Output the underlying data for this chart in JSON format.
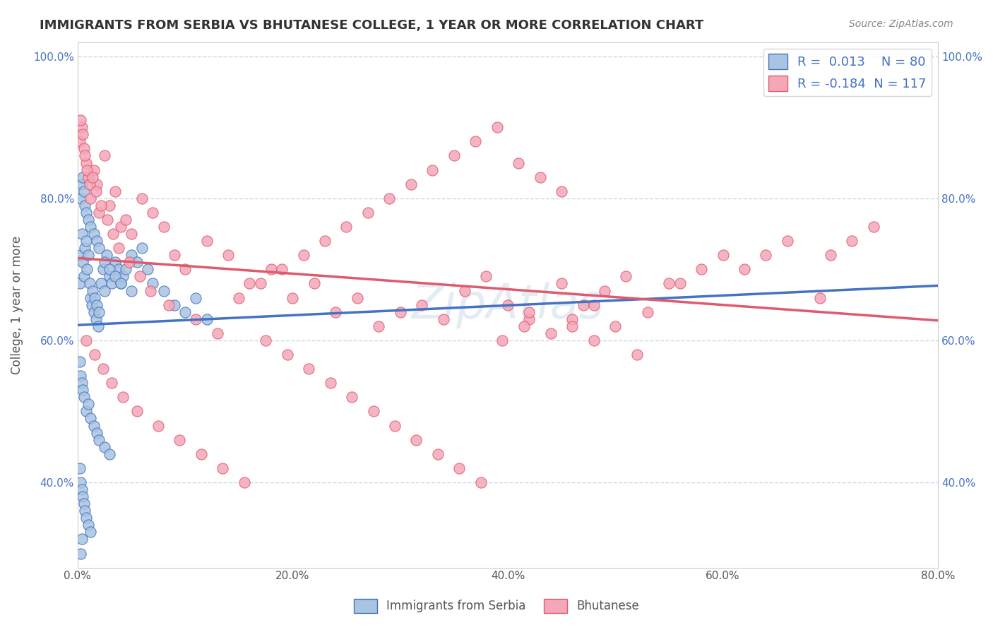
{
  "title": "IMMIGRANTS FROM SERBIA VS BHUTANESE COLLEGE, 1 YEAR OR MORE CORRELATION CHART",
  "source_text": "Source: ZipAtlas.com",
  "ylabel": "College, 1 year or more",
  "xlabel_serbia": "Immigrants from Serbia",
  "xlabel_bhutanese": "Bhutanese",
  "xlim": [
    0.0,
    0.8
  ],
  "ylim": [
    0.28,
    1.02
  ],
  "x_ticks": [
    0.0,
    0.2,
    0.4,
    0.6,
    0.8
  ],
  "x_tick_labels": [
    "0.0%",
    "20.0%",
    "40.0%",
    "60.0%",
    "80.0%"
  ],
  "y_ticks": [
    0.4,
    0.6,
    0.8,
    1.0
  ],
  "y_tick_labels": [
    "40.0%",
    "60.0%",
    "80.0%",
    "100.0%"
  ],
  "serbia_R": 0.013,
  "serbia_N": 80,
  "bhutan_R": -0.184,
  "bhutan_N": 117,
  "serbia_color": "#a8c4e0",
  "bhutan_color": "#f4a7b9",
  "serbia_line_color": "#4472c4",
  "bhutan_line_color": "#e05a6e",
  "legend_box_color": "#f0f4fa",
  "title_color": "#333333",
  "watermark_color": "#c8d8e8",
  "grid_color": "#c8d8e8",
  "serbia_x": [
    0.002,
    0.003,
    0.004,
    0.005,
    0.006,
    0.007,
    0.008,
    0.009,
    0.01,
    0.011,
    0.012,
    0.013,
    0.014,
    0.015,
    0.016,
    0.017,
    0.018,
    0.019,
    0.02,
    0.022,
    0.024,
    0.025,
    0.027,
    0.03,
    0.032,
    0.035,
    0.038,
    0.04,
    0.042,
    0.045,
    0.05,
    0.055,
    0.06,
    0.065,
    0.07,
    0.08,
    0.09,
    0.1,
    0.11,
    0.12,
    0.003,
    0.004,
    0.005,
    0.006,
    0.007,
    0.008,
    0.01,
    0.012,
    0.015,
    0.018,
    0.02,
    0.025,
    0.03,
    0.035,
    0.04,
    0.05,
    0.002,
    0.003,
    0.004,
    0.005,
    0.006,
    0.008,
    0.01,
    0.012,
    0.015,
    0.018,
    0.02,
    0.025,
    0.03,
    0.002,
    0.003,
    0.004,
    0.005,
    0.006,
    0.007,
    0.008,
    0.01,
    0.012,
    0.004,
    0.003
  ],
  "serbia_y": [
    0.68,
    0.72,
    0.75,
    0.71,
    0.69,
    0.73,
    0.74,
    0.7,
    0.72,
    0.68,
    0.66,
    0.65,
    0.67,
    0.64,
    0.66,
    0.63,
    0.65,
    0.62,
    0.64,
    0.68,
    0.7,
    0.67,
    0.72,
    0.69,
    0.68,
    0.71,
    0.7,
    0.68,
    0.69,
    0.7,
    0.72,
    0.71,
    0.73,
    0.7,
    0.68,
    0.67,
    0.65,
    0.64,
    0.66,
    0.63,
    0.8,
    0.82,
    0.83,
    0.81,
    0.79,
    0.78,
    0.77,
    0.76,
    0.75,
    0.74,
    0.73,
    0.71,
    0.7,
    0.69,
    0.68,
    0.67,
    0.57,
    0.55,
    0.54,
    0.53,
    0.52,
    0.5,
    0.51,
    0.49,
    0.48,
    0.47,
    0.46,
    0.45,
    0.44,
    0.42,
    0.4,
    0.39,
    0.38,
    0.37,
    0.36,
    0.35,
    0.34,
    0.33,
    0.32,
    0.3
  ],
  "bhutan_x": [
    0.002,
    0.004,
    0.006,
    0.008,
    0.01,
    0.012,
    0.015,
    0.018,
    0.02,
    0.025,
    0.03,
    0.035,
    0.04,
    0.045,
    0.05,
    0.06,
    0.07,
    0.08,
    0.09,
    0.1,
    0.12,
    0.14,
    0.16,
    0.18,
    0.2,
    0.22,
    0.24,
    0.26,
    0.28,
    0.3,
    0.32,
    0.34,
    0.36,
    0.38,
    0.4,
    0.42,
    0.44,
    0.46,
    0.48,
    0.5,
    0.003,
    0.005,
    0.007,
    0.009,
    0.011,
    0.014,
    0.017,
    0.022,
    0.028,
    0.033,
    0.038,
    0.048,
    0.058,
    0.068,
    0.085,
    0.11,
    0.13,
    0.15,
    0.17,
    0.19,
    0.21,
    0.23,
    0.25,
    0.27,
    0.29,
    0.31,
    0.33,
    0.35,
    0.37,
    0.39,
    0.41,
    0.43,
    0.45,
    0.008,
    0.016,
    0.024,
    0.032,
    0.042,
    0.055,
    0.075,
    0.095,
    0.115,
    0.135,
    0.155,
    0.175,
    0.195,
    0.215,
    0.235,
    0.255,
    0.275,
    0.295,
    0.315,
    0.335,
    0.355,
    0.375,
    0.395,
    0.415,
    0.53,
    0.55,
    0.62,
    0.64,
    0.66,
    0.69,
    0.7,
    0.72,
    0.74,
    0.56,
    0.58,
    0.6,
    0.45,
    0.47,
    0.49,
    0.51,
    0.42,
    0.46,
    0.48,
    0.52
  ],
  "bhutan_y": [
    0.88,
    0.9,
    0.87,
    0.85,
    0.83,
    0.8,
    0.84,
    0.82,
    0.78,
    0.86,
    0.79,
    0.81,
    0.76,
    0.77,
    0.75,
    0.8,
    0.78,
    0.76,
    0.72,
    0.7,
    0.74,
    0.72,
    0.68,
    0.7,
    0.66,
    0.68,
    0.64,
    0.66,
    0.62,
    0.64,
    0.65,
    0.63,
    0.67,
    0.69,
    0.65,
    0.63,
    0.61,
    0.63,
    0.65,
    0.62,
    0.91,
    0.89,
    0.86,
    0.84,
    0.82,
    0.83,
    0.81,
    0.79,
    0.77,
    0.75,
    0.73,
    0.71,
    0.69,
    0.67,
    0.65,
    0.63,
    0.61,
    0.66,
    0.68,
    0.7,
    0.72,
    0.74,
    0.76,
    0.78,
    0.8,
    0.82,
    0.84,
    0.86,
    0.88,
    0.9,
    0.85,
    0.83,
    0.81,
    0.6,
    0.58,
    0.56,
    0.54,
    0.52,
    0.5,
    0.48,
    0.46,
    0.44,
    0.42,
    0.4,
    0.6,
    0.58,
    0.56,
    0.54,
    0.52,
    0.5,
    0.48,
    0.46,
    0.44,
    0.42,
    0.4,
    0.6,
    0.62,
    0.64,
    0.68,
    0.7,
    0.72,
    0.74,
    0.66,
    0.72,
    0.74,
    0.76,
    0.68,
    0.7,
    0.72,
    0.68,
    0.65,
    0.67,
    0.69,
    0.64,
    0.62,
    0.6,
    0.58
  ]
}
